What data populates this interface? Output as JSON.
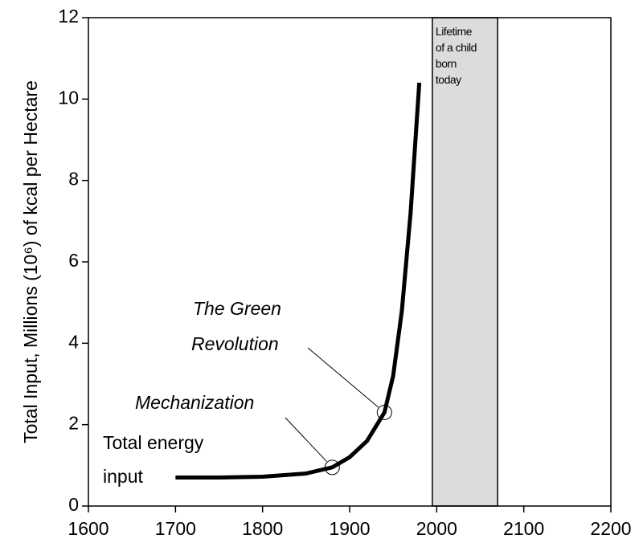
{
  "chart_data": {
    "type": "line",
    "ylabel": "Total Input, Millions (10⁶) of kcal per Hectare",
    "x": [
      1700,
      1750,
      1800,
      1850,
      1880,
      1900,
      1920,
      1940,
      1950,
      1960,
      1970,
      1980
    ],
    "values": [
      0.7,
      0.7,
      0.72,
      0.8,
      0.95,
      1.2,
      1.6,
      2.3,
      3.2,
      4.8,
      7.2,
      10.4
    ],
    "color": "#000000",
    "xlim": [
      1600,
      2200
    ],
    "xticks": [
      1600,
      1700,
      1800,
      1900,
      2000,
      2100,
      2200
    ],
    "ylim": [
      0,
      12
    ],
    "yticks": [
      0,
      2,
      4,
      6,
      8,
      10,
      12
    ],
    "span": {
      "range": [
        1995,
        2070
      ],
      "color": "#dcdcdc",
      "text": [
        "Lifetime",
        "of a child",
        "born",
        "today"
      ]
    },
    "annotations": [
      {
        "text": [
          "Total energy",
          "input"
        ]
      },
      {
        "text": [
          "Mechanization"
        ],
        "x": 1880
      },
      {
        "text": [
          "The Green",
          "Revolution"
        ],
        "x": 1940
      }
    ]
  }
}
